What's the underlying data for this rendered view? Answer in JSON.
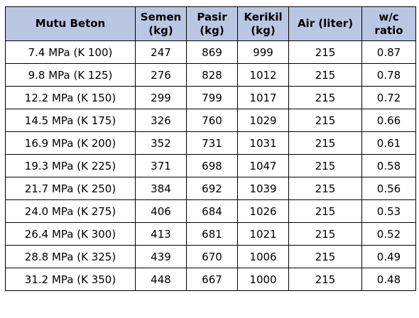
{
  "table": {
    "headers": [
      [
        "Mutu Beton"
      ],
      [
        "Semen",
        "(kg)"
      ],
      [
        "Pasir",
        "(kg)"
      ],
      [
        "Kerikil",
        "(kg)"
      ],
      [
        "Air (liter)"
      ],
      [
        "w/c",
        "ratio"
      ]
    ],
    "rows": [
      [
        "7.4 MPa (K 100)",
        "247",
        "869",
        "999",
        "215",
        "0.87"
      ],
      [
        "9.8 MPa (K 125)",
        "276",
        "828",
        "1012",
        "215",
        "0.78"
      ],
      [
        "12.2 MPa (K 150)",
        "299",
        "799",
        "1017",
        "215",
        "0.72"
      ],
      [
        "14.5 MPa (K 175)",
        "326",
        "760",
        "1029",
        "215",
        "0.66"
      ],
      [
        "16.9 MPa (K 200)",
        "352",
        "731",
        "1031",
        "215",
        "0.61"
      ],
      [
        "19.3 MPa (K 225)",
        "371",
        "698",
        "1047",
        "215",
        "0.58"
      ],
      [
        "21.7 MPa (K 250)",
        "384",
        "692",
        "1039",
        "215",
        "0.56"
      ],
      [
        "24.0 MPa (K 275)",
        "406",
        "684",
        "1026",
        "215",
        "0.53"
      ],
      [
        "26.4 MPa (K 300)",
        "413",
        "681",
        "1021",
        "215",
        "0.52"
      ],
      [
        "28.8 MPa (K 325)",
        "439",
        "670",
        "1006",
        "215",
        "0.49"
      ],
      [
        "31.2 MPa (K 350)",
        "448",
        "667",
        "1000",
        "215",
        "0.48"
      ]
    ],
    "colors": {
      "header_bg": "#b9c7e3",
      "border": "#000000"
    }
  }
}
